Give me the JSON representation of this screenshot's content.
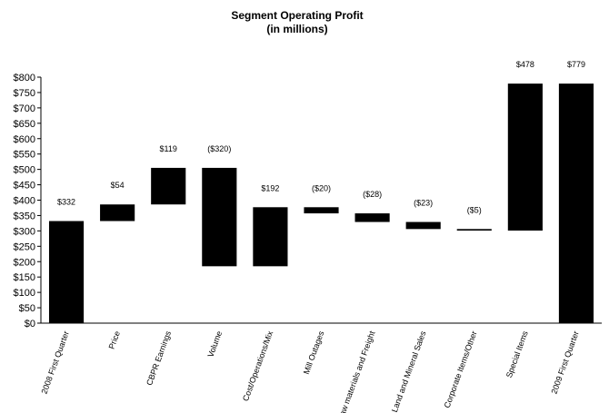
{
  "chart_data": {
    "type": "bar",
    "subtype": "waterfall",
    "title": "Segment Operating Profit",
    "subtitle": "(in millions)",
    "xlabel": "",
    "ylabel": "",
    "ylim": [
      0,
      800
    ],
    "yticks": [
      0,
      50,
      100,
      150,
      200,
      250,
      300,
      350,
      400,
      450,
      500,
      550,
      600,
      650,
      700,
      750,
      800
    ],
    "ytick_labels": [
      "$0",
      "$50",
      "$100",
      "$150",
      "$200",
      "$250",
      "$300",
      "$350",
      "$400",
      "$450",
      "$500",
      "$550",
      "$600",
      "$650",
      "$700",
      "$750",
      "$800"
    ],
    "grid": false,
    "bar_color": "#000000",
    "categories": [
      "2008 First Quarter",
      "Price",
      "CBPR Earnings",
      "Volume",
      "Cost/Operations/Mix",
      "Mill Outages",
      "Raw materials and Freight",
      "Land and Mineral Sales",
      "Corporate Items/Other",
      "Special Items",
      "2009 First Quarter"
    ],
    "bars": [
      {
        "low": 0,
        "high": 332,
        "label": "$332"
      },
      {
        "low": 332,
        "high": 386,
        "label": "$54"
      },
      {
        "low": 386,
        "high": 505,
        "label": "$119"
      },
      {
        "low": 185,
        "high": 505,
        "label": "($320)"
      },
      {
        "low": 185,
        "high": 377,
        "label": "$192"
      },
      {
        "low": 357,
        "high": 377,
        "label": "($20)"
      },
      {
        "low": 329,
        "high": 357,
        "label": "($28)"
      },
      {
        "low": 306,
        "high": 329,
        "label": "($23)"
      },
      {
        "low": 301,
        "high": 306,
        "label": "($5)"
      },
      {
        "low": 301,
        "high": 779,
        "label": "$478"
      },
      {
        "low": 0,
        "high": 779,
        "label": "$779"
      }
    ]
  }
}
